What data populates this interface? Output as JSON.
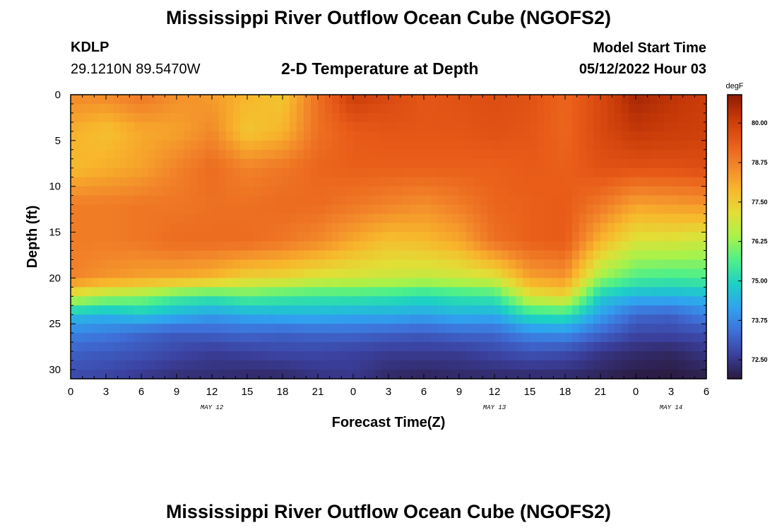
{
  "page": {
    "title": "Mississippi River Outflow Ocean Cube (NGOFS2)",
    "station_id": "KDLP",
    "coordinates": "29.1210N  89.5470W",
    "subtitle": "2-D Temperature at Depth",
    "model_start_label": "Model Start Time",
    "model_start_value": "05/12/2022 Hour 03",
    "footer_title": "Mississippi River Outflow Ocean Cube (NGOFS2)"
  },
  "chart_data": {
    "type": "heatmap",
    "title": "2-D Temperature at Depth",
    "xlabel": "Forecast Time(Z)",
    "ylabel": "Depth (ft)",
    "x_range_hours": [
      0,
      54
    ],
    "x_tick_step_hours": 3,
    "x_tick_labels": [
      "0",
      "3",
      "6",
      "9",
      "12",
      "15",
      "18",
      "21",
      "0",
      "3",
      "6",
      "9",
      "12",
      "15",
      "18",
      "21",
      "0",
      "3",
      "6"
    ],
    "day_labels": [
      {
        "label": "MAY 12",
        "at_hour": 12
      },
      {
        "label": "MAY 13",
        "at_hour": 36
      },
      {
        "label": "MAY 14",
        "at_hour": 51
      }
    ],
    "ylim": [
      0,
      31
    ],
    "y_ticks": [
      "0",
      "5",
      "10",
      "15",
      "20",
      "25",
      "30"
    ],
    "colorbar": {
      "unit": "degF",
      "range": [
        71.9,
        80.9
      ],
      "ticks": [
        "72.50",
        "73.75",
        "75.00",
        "76.25",
        "77.50",
        "78.75",
        "80.00"
      ],
      "colors": [
        "#2a1a3e",
        "#3b3f9c",
        "#3f6fd8",
        "#2fa3f0",
        "#1dd0c4",
        "#4ef08a",
        "#a8f24a",
        "#e2de36",
        "#f8b62c",
        "#f2852a",
        "#e85a18",
        "#c83a08",
        "#8e1a04"
      ]
    },
    "grid": {
      "x_hours": [
        0,
        3,
        6,
        9,
        12,
        15,
        18,
        21,
        24,
        27,
        30,
        33,
        36,
        39,
        42,
        45,
        48,
        51,
        54
      ],
      "depth_ft": [
        0,
        4,
        8,
        12,
        16,
        20,
        22,
        24,
        26,
        28,
        31
      ]
    },
    "temperature_degF": [
      [
        78.6,
        78.6,
        78.9,
        78.5,
        78.3,
        77.9,
        77.6,
        79.0,
        80.1,
        79.8,
        79.5,
        79.6,
        79.7,
        79.6,
        79.2,
        79.8,
        80.6,
        80.3,
        80.1
      ],
      [
        78.0,
        77.7,
        78.1,
        78.2,
        78.6,
        77.6,
        77.9,
        79.0,
        79.4,
        79.5,
        79.5,
        79.5,
        79.6,
        79.5,
        79.2,
        79.8,
        80.2,
        80.1,
        80.0
      ],
      [
        77.8,
        78.0,
        78.2,
        78.7,
        79.1,
        78.7,
        78.9,
        79.2,
        79.3,
        79.3,
        79.3,
        79.3,
        79.3,
        79.4,
        79.3,
        79.6,
        79.6,
        79.6,
        79.7
      ],
      [
        78.8,
        78.8,
        78.9,
        78.9,
        79.0,
        79.0,
        79.1,
        79.1,
        78.9,
        78.7,
        78.5,
        78.8,
        79.2,
        79.3,
        79.4,
        78.9,
        78.2,
        78.3,
        78.4
      ],
      [
        78.8,
        78.8,
        78.9,
        79.1,
        79.1,
        79.1,
        78.9,
        78.6,
        78.1,
        77.7,
        77.8,
        78.1,
        79.0,
        79.3,
        79.4,
        77.9,
        77.0,
        77.0,
        76.8
      ],
      [
        78.7,
        78.4,
        78.2,
        78.1,
        77.9,
        77.4,
        77.3,
        77.0,
        76.9,
        76.8,
        76.7,
        76.8,
        77.0,
        78.2,
        78.4,
        76.3,
        75.6,
        75.5,
        75.6
      ],
      [
        76.9,
        76.4,
        76.2,
        75.6,
        75.4,
        75.7,
        75.5,
        75.4,
        75.4,
        75.3,
        75.1,
        75.3,
        75.4,
        77.0,
        77.3,
        74.8,
        74.4,
        74.4,
        74.5
      ],
      [
        74.6,
        74.4,
        74.7,
        74.4,
        74.1,
        74.3,
        74.4,
        74.4,
        74.3,
        74.3,
        74.2,
        74.4,
        74.3,
        75.2,
        75.3,
        74.1,
        73.3,
        73.2,
        73.7
      ],
      [
        73.7,
        73.6,
        73.3,
        73.1,
        73.2,
        73.3,
        73.2,
        73.3,
        73.3,
        73.2,
        73.1,
        73.3,
        73.3,
        73.8,
        73.9,
        73.3,
        72.8,
        72.8,
        72.9
      ],
      [
        73.2,
        73.1,
        73.0,
        72.8,
        72.6,
        72.7,
        72.8,
        72.8,
        72.7,
        72.6,
        72.6,
        72.6,
        72.8,
        73.0,
        72.9,
        72.5,
        72.3,
        72.2,
        72.5
      ],
      [
        72.8,
        72.7,
        72.5,
        72.3,
        72.3,
        72.2,
        72.2,
        72.4,
        72.5,
        72.2,
        72.1,
        72.2,
        72.2,
        72.2,
        72.2,
        72.1,
        71.9,
        71.9,
        72.0
      ]
    ]
  }
}
